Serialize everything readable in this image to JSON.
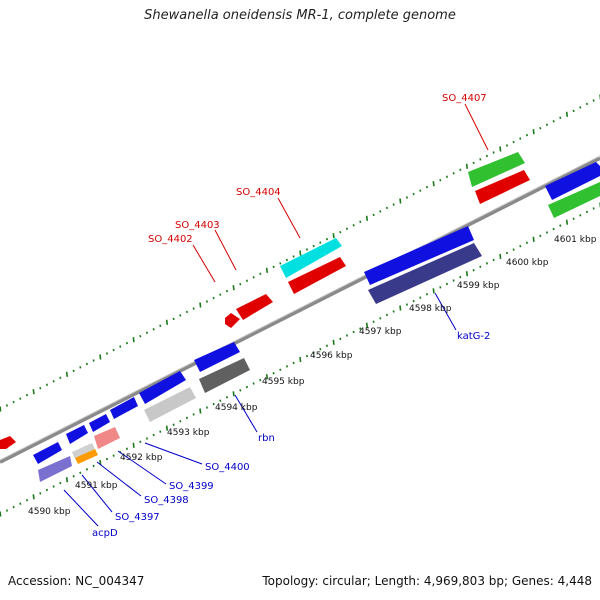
{
  "title": "Shewanella oneidensis MR-1, complete genome",
  "footer": {
    "accession": "Accession: NC_004347",
    "topology": "Topology: circular; Length: 4,969,803 bp; Genes: 4,448"
  },
  "scale_labels": [
    "4590 kbp",
    "4591 kbp",
    "4592 kbp",
    "4593 kbp",
    "4594 kbp",
    "4595 kbp",
    "4596 kbp",
    "4597 kbp",
    "4598 kbp",
    "4599 kbp",
    "4600 kbp",
    "4601 kbp"
  ],
  "gene_labels_outer": [
    "SO_4402",
    "SO_4403",
    "SO_4404",
    "SO_4407"
  ],
  "gene_labels_inner": [
    "acpD",
    "SO_4397",
    "SO_4398",
    "SO_4399",
    "SO_4400",
    "rbn",
    "katG-2"
  ],
  "colors": {
    "backbone": "#8a8a8a",
    "tick": "#1a7a1a",
    "outer_label": "#d40000",
    "inner_label": "#0000c8",
    "blue": "#1010e0",
    "red": "#e00000",
    "cyan": "#00e0e0",
    "green": "#30c030",
    "navy": "#3a3a8a",
    "purple": "#7a70d0",
    "gray_dark": "#606060",
    "gray_light": "#c8c8c8",
    "pink": "#f08888",
    "orange": "#ff9a00",
    "lightgray2": "#d0d0d0"
  }
}
